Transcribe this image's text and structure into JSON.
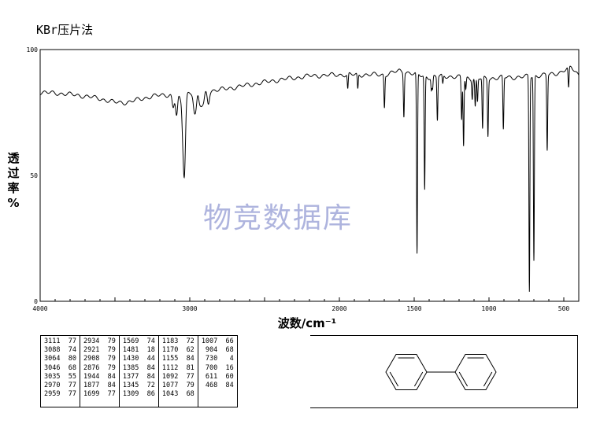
{
  "method_label": "KBr压片法",
  "watermark": "物竞数据库",
  "chart_data": {
    "type": "line",
    "title": "",
    "xlabel": "波数/cm⁻¹",
    "ylabel_chars": [
      "透",
      "过",
      "率",
      "%"
    ],
    "xlim": [
      4000,
      400
    ],
    "ylim": [
      0,
      100
    ],
    "x_ticks": [
      4000,
      3000,
      2000,
      1500,
      1000,
      500
    ],
    "y_ticks": [
      0,
      50,
      100
    ],
    "grid": false,
    "baseline": [
      [
        4000,
        83
      ],
      [
        3850,
        82.5
      ],
      [
        3700,
        81.5
      ],
      [
        3600,
        80.5
      ],
      [
        3500,
        79
      ],
      [
        3420,
        79
      ],
      [
        3350,
        80
      ],
      [
        3250,
        81.5
      ],
      [
        3150,
        82
      ],
      [
        2800,
        84
      ],
      [
        2600,
        86
      ],
      [
        2400,
        88
      ],
      [
        2200,
        89.5
      ],
      [
        2000,
        90
      ],
      [
        1900,
        90
      ],
      [
        1700,
        90
      ],
      [
        1600,
        91.5
      ],
      [
        1550,
        91
      ],
      [
        1480,
        90
      ],
      [
        1400,
        89
      ],
      [
        1300,
        89.5
      ],
      [
        1200,
        89
      ],
      [
        1100,
        88.5
      ],
      [
        1000,
        88.5
      ],
      [
        900,
        89
      ],
      [
        800,
        89
      ],
      [
        700,
        89.5
      ],
      [
        600,
        90
      ],
      [
        520,
        91
      ],
      [
        450,
        93
      ],
      [
        400,
        90
      ]
    ],
    "peaks": [
      {
        "wn": 3111,
        "t": 77
      },
      {
        "wn": 3088,
        "t": 74
      },
      {
        "wn": 3064,
        "t": 80
      },
      {
        "wn": 3046,
        "t": 68
      },
      {
        "wn": 3035,
        "t": 55
      },
      {
        "wn": 2970,
        "t": 77
      },
      {
        "wn": 2959,
        "t": 77
      },
      {
        "wn": 2934,
        "t": 79
      },
      {
        "wn": 2921,
        "t": 79
      },
      {
        "wn": 2908,
        "t": 79
      },
      {
        "wn": 2876,
        "t": 79
      },
      {
        "wn": 1944,
        "t": 84
      },
      {
        "wn": 1877,
        "t": 84
      },
      {
        "wn": 1699,
        "t": 77
      },
      {
        "wn": 1569,
        "t": 74
      },
      {
        "wn": 1481,
        "t": 18
      },
      {
        "wn": 1430,
        "t": 44
      },
      {
        "wn": 1385,
        "t": 84
      },
      {
        "wn": 1377,
        "t": 84
      },
      {
        "wn": 1345,
        "t": 72
      },
      {
        "wn": 1309,
        "t": 86
      },
      {
        "wn": 1183,
        "t": 72
      },
      {
        "wn": 1170,
        "t": 62
      },
      {
        "wn": 1155,
        "t": 84
      },
      {
        "wn": 1112,
        "t": 81
      },
      {
        "wn": 1092,
        "t": 77
      },
      {
        "wn": 1077,
        "t": 79
      },
      {
        "wn": 1043,
        "t": 68
      },
      {
        "wn": 1007,
        "t": 66
      },
      {
        "wn": 904,
        "t": 68
      },
      {
        "wn": 730,
        "t": 4
      },
      {
        "wn": 700,
        "t": 16
      },
      {
        "wn": 611,
        "t": 60
      },
      {
        "wn": 468,
        "t": 84
      }
    ]
  },
  "peak_table": [
    [
      "3111  77",
      "3088  74",
      "3064  80",
      "3046  68",
      "3035  55",
      "2970  77",
      "2959  77"
    ],
    [
      "2934  79",
      "2921  79",
      "2908  79",
      "2876  79",
      "1944  84",
      "1877  84",
      "1699  77"
    ],
    [
      "1569  74",
      "1481  18",
      "1430  44",
      "1385  84",
      "1377  84",
      "1345  72",
      "1309  86"
    ],
    [
      "1183  72",
      "1170  62",
      "1155  84",
      "1112  81",
      "1092  77",
      "1077  79",
      "1043  68"
    ],
    [
      "1007  66",
      " 904  68",
      " 730   4",
      " 700  16",
      " 611  60",
      " 468  84"
    ]
  ],
  "structure": {
    "name": "biphenyl-structure",
    "line_color": "#000000"
  }
}
